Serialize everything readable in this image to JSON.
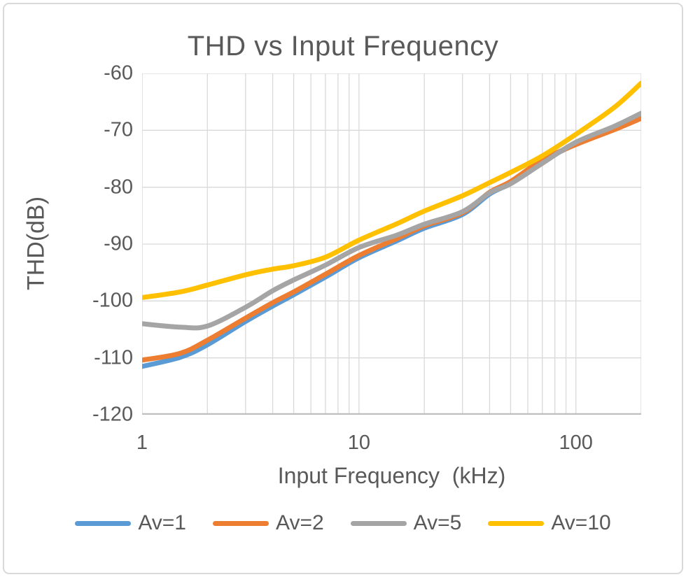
{
  "chart": {
    "title": "THD vs Input Frequency",
    "y_axis_title": "THD(dB)",
    "x_axis_title": "Input Frequency  (kHz)"
  },
  "chart_data": {
    "type": "line",
    "title": "THD vs Input Frequency",
    "xlabel": "Input Frequency  (kHz)",
    "ylabel": "THD(dB)",
    "x_scale": "log",
    "xlim": [
      1,
      200
    ],
    "ylim": [
      -120,
      -60
    ],
    "x_ticks": [
      1,
      10,
      100
    ],
    "y_ticks": [
      -60,
      -70,
      -80,
      -90,
      -100,
      -110,
      -120
    ],
    "x_minor_gridlines": [
      2,
      3,
      4,
      5,
      6,
      7,
      8,
      9,
      20,
      30,
      40,
      50,
      60,
      70,
      80,
      90,
      200
    ],
    "grid": true,
    "legend_position": "bottom",
    "grid_color": "#d9d9d9",
    "axis_color": "#bfbfbf",
    "text_color": "#595959",
    "x": [
      1,
      1.5,
      2,
      3,
      4,
      5,
      7,
      10,
      15,
      20,
      30,
      40,
      50,
      70,
      100,
      150,
      200
    ],
    "series": [
      {
        "name": "Av=1",
        "color": "#5B9BD5",
        "values": [
          -111.5,
          -109.9,
          -107.7,
          -103.6,
          -100.9,
          -98.9,
          -95.8,
          -92.4,
          -89.4,
          -87.2,
          -84.8,
          -81.2,
          -79.3,
          -75.5,
          -72.4,
          -69.6,
          -67.5
        ]
      },
      {
        "name": "Av=2",
        "color": "#ED7D31",
        "values": [
          -110.4,
          -109.2,
          -106.9,
          -103.0,
          -100.3,
          -98.4,
          -95.3,
          -92.0,
          -89.0,
          -86.8,
          -84.5,
          -80.9,
          -79.0,
          -75.2,
          -72.5,
          -69.9,
          -67.9
        ]
      },
      {
        "name": "Av=5",
        "color": "#A5A5A5",
        "values": [
          -104.0,
          -104.6,
          -104.4,
          -101.1,
          -98.2,
          -96.3,
          -93.7,
          -90.6,
          -88.4,
          -86.5,
          -84.3,
          -81.0,
          -79.4,
          -75.8,
          -72.1,
          -69.3,
          -67.0
        ]
      },
      {
        "name": "Av=10",
        "color": "#FFC000",
        "values": [
          -99.4,
          -98.4,
          -97.2,
          -95.4,
          -94.4,
          -93.8,
          -92.3,
          -89.3,
          -86.4,
          -84.2,
          -81.5,
          -79.2,
          -77.4,
          -74.5,
          -70.7,
          -66.0,
          -61.7
        ]
      }
    ]
  }
}
